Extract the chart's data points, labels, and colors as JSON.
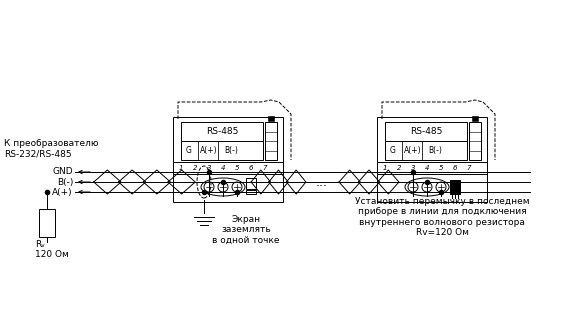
{
  "bg_color": "#ffffff",
  "line_color": "#000000",
  "text_converter": "К преобразователю\nRS-232/RS-485",
  "text_gnd": "GND",
  "text_b": "B(-)",
  "text_a": "A(+)",
  "text_screen": "Экран\nзаземлять\nв одной точке",
  "text_rv": "Rᵥ\n120 Ом",
  "text_jumper": "Установить перемычку в последнем\nприборе в линии для подключения\nвнутреннего волнового резистора\nRv=120 Ом",
  "text_rs485": "RS-485"
}
